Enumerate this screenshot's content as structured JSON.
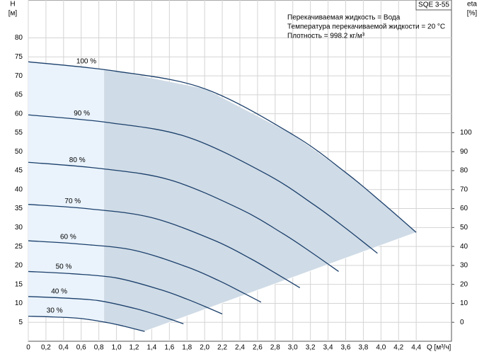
{
  "chart_data": {
    "type": "line",
    "badge": "SQE 3-55",
    "annotations": [
      "Перекачиваемая жидкость = Вода",
      "Температура перекачиваемой жидкости = 20 °C",
      "Плотность = 998.2 кг/м³"
    ],
    "ylabel": "H",
    "ylabel_unit": "[м]",
    "y2label": "eta",
    "y2label_unit": "[%]",
    "xlabel": "Q [м³/ч]",
    "xlim": [
      0,
      4.8
    ],
    "xticks": [
      0,
      {
        "value": 0.2,
        "label": "0,2"
      },
      {
        "value": 0.4,
        "label": "0,4"
      },
      {
        "value": 0.6,
        "label": "0,6"
      },
      {
        "value": 0.8,
        "label": "0,8"
      },
      {
        "value": 1.0,
        "label": "1,0"
      },
      {
        "value": 1.2,
        "label": "1,2"
      },
      {
        "value": 1.4,
        "label": "1,4"
      },
      {
        "value": 1.6,
        "label": "1,6"
      },
      {
        "value": 1.8,
        "label": "1,8"
      },
      {
        "value": 2.0,
        "label": "2,0"
      },
      {
        "value": 2.2,
        "label": "2,2"
      },
      {
        "value": 2.4,
        "label": "2,4"
      },
      {
        "value": 2.6,
        "label": "2,6"
      },
      {
        "value": 2.8,
        "label": "2,8"
      },
      {
        "value": 3.0,
        "label": "3,0"
      },
      {
        "value": 3.2,
        "label": "3,2"
      },
      {
        "value": 3.4,
        "label": "3,4"
      },
      {
        "value": 3.6,
        "label": "3,6"
      },
      {
        "value": 3.8,
        "label": "3,8"
      },
      {
        "value": 4.0,
        "label": "4,0"
      },
      {
        "value": 4.2,
        "label": "4,2"
      },
      {
        "value": 4.4,
        "label": "4,4"
      }
    ],
    "ylim": [
      0,
      90
    ],
    "yticks": [
      5,
      10,
      15,
      20,
      25,
      30,
      35,
      40,
      45,
      50,
      55,
      60,
      65,
      70,
      75,
      80
    ],
    "y2lim": [
      -10,
      170
    ],
    "y2ticks": [
      0,
      10,
      20,
      30,
      40,
      50,
      60,
      70,
      80,
      90,
      100
    ],
    "grid": true,
    "region_color": "#cfdbe6",
    "highlight_color": "#eaf3fc",
    "highlight_xlim": [
      0,
      0.86
    ],
    "series": [
      {
        "name": "100 %",
        "color": "#1b3f6b",
        "x": [
          0,
          1,
          2,
          3,
          3.6,
          4,
          4.4
        ],
        "values": [
          73.7,
          71.2,
          66.6,
          54.5,
          44.5,
          36.8,
          28.7
        ]
      },
      {
        "name": "90 %",
        "color": "#1b3f6b",
        "x": [
          0,
          0.9,
          1.8,
          2.7,
          3.24,
          3.6,
          3.96
        ],
        "values": [
          59.7,
          57.7,
          53.9,
          44.1,
          36.0,
          29.8,
          23.2
        ]
      },
      {
        "name": "80 %",
        "color": "#1b3f6b",
        "x": [
          0,
          0.8,
          1.6,
          2.4,
          2.88,
          3.2,
          3.52
        ],
        "values": [
          47.2,
          45.6,
          42.6,
          34.9,
          28.5,
          23.6,
          18.4
        ]
      },
      {
        "name": "70 %",
        "color": "#1b3f6b",
        "x": [
          0,
          0.7,
          1.4,
          2.1,
          2.52,
          2.8,
          3.08
        ],
        "values": [
          36.1,
          34.9,
          32.6,
          26.7,
          21.8,
          18.0,
          14.1
        ]
      },
      {
        "name": "60 %",
        "color": "#1b3f6b",
        "x": [
          0,
          0.6,
          1.2,
          1.8,
          2.16,
          2.4,
          2.64
        ],
        "values": [
          26.5,
          25.6,
          24.0,
          19.6,
          16.0,
          13.2,
          10.3
        ]
      },
      {
        "name": "50 %",
        "color": "#1b3f6b",
        "x": [
          0,
          0.5,
          1,
          1.5,
          1.8,
          2,
          2.2
        ],
        "values": [
          18.4,
          17.8,
          16.7,
          13.6,
          11.1,
          9.2,
          7.2
        ]
      },
      {
        "name": "40 %",
        "color": "#1b3f6b",
        "x": [
          0,
          0.4,
          0.8,
          1.2,
          1.44,
          1.6,
          1.76
        ],
        "values": [
          11.8,
          11.4,
          10.7,
          8.7,
          7.1,
          5.9,
          4.6
        ]
      },
      {
        "name": "30 %",
        "color": "#1b3f6b",
        "x": [
          0,
          0.3,
          0.6,
          0.9,
          1.08,
          1.2,
          1.32
        ],
        "values": [
          6.6,
          6.4,
          6.0,
          4.9,
          4.0,
          3.3,
          2.6
        ]
      }
    ]
  }
}
